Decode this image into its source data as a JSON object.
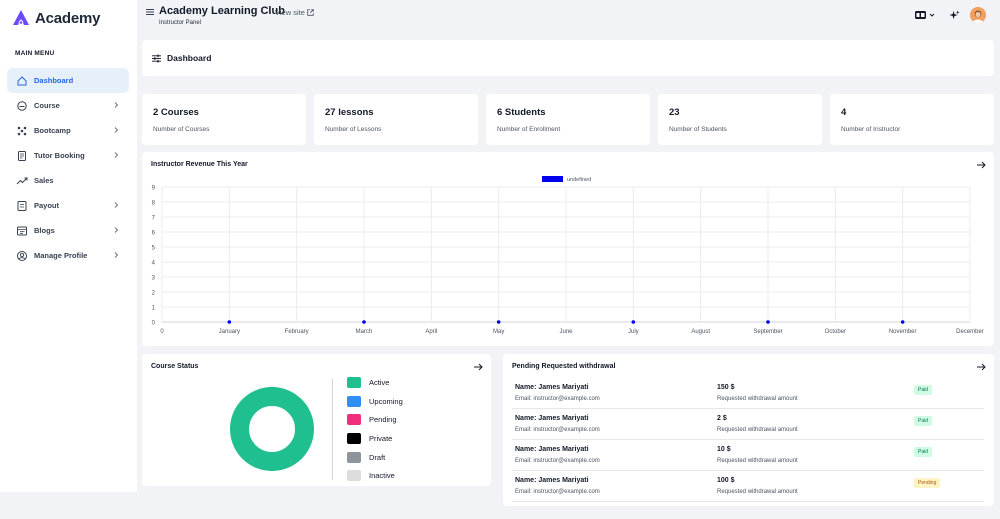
{
  "brand": {
    "name": "Academy"
  },
  "sidebar": {
    "menu_title": "MAIN MENU",
    "items": [
      {
        "label": "Dashboard",
        "icon": "home-icon",
        "active": true,
        "has_chevron": false
      },
      {
        "label": "Course",
        "icon": "course-icon",
        "active": false,
        "has_chevron": true
      },
      {
        "label": "Bootcamp",
        "icon": "bootcamp-icon",
        "active": false,
        "has_chevron": true
      },
      {
        "label": "Tutor Booking",
        "icon": "booking-icon",
        "active": false,
        "has_chevron": true
      },
      {
        "label": "Sales",
        "icon": "sales-icon",
        "active": false,
        "has_chevron": false
      },
      {
        "label": "Payout",
        "icon": "payout-icon",
        "active": false,
        "has_chevron": true
      },
      {
        "label": "Blogs",
        "icon": "blogs-icon",
        "active": false,
        "has_chevron": true
      },
      {
        "label": "Manage Profile",
        "icon": "profile-icon",
        "active": false,
        "has_chevron": true
      }
    ]
  },
  "topbar": {
    "title": "Academy Learning Club",
    "view_site": "View site",
    "subtitle": "Instructor Panel"
  },
  "dashboard": {
    "title": "Dashboard"
  },
  "stats": [
    {
      "value": "2 Courses",
      "label": "Number of Courses"
    },
    {
      "value": "27 lessons",
      "label": "Number of Lessons"
    },
    {
      "value": "6 Students",
      "label": "Number of Enrollment"
    },
    {
      "value": "23",
      "label": "Number of Students"
    },
    {
      "value": "4",
      "label": "Number of Instructor"
    }
  ],
  "revenue": {
    "title": "Instructor Revenue This Year"
  },
  "chart_data": {
    "type": "line",
    "title": "Instructor Revenue This Year",
    "categories": [
      "January",
      "February",
      "March",
      "April",
      "May",
      "June",
      "July",
      "August",
      "September",
      "October",
      "November",
      "December"
    ],
    "series": [
      {
        "name": "undefined",
        "color": "#0000ee",
        "values": [
          0,
          null,
          0,
          null,
          0,
          null,
          0,
          null,
          0,
          null,
          0,
          null
        ]
      }
    ],
    "yticks": [
      "0",
      "1",
      "2",
      "3",
      "4",
      "5",
      "6",
      "7",
      "8",
      "9"
    ],
    "xticks": [
      "0",
      "January",
      "February",
      "March",
      "April",
      "May",
      "June",
      "July",
      "August",
      "September",
      "October",
      "November",
      "December"
    ],
    "ylim": [
      0,
      9
    ],
    "grid": true,
    "legend": "top-center"
  },
  "course_status": {
    "title": "Course Status",
    "legend": [
      {
        "label": "Active",
        "color": "#1fbf8f"
      },
      {
        "label": "Upcoming",
        "color": "#2f8ff3"
      },
      {
        "label": "Pending",
        "color": "#ef2f7e"
      },
      {
        "label": "Private",
        "color": "#000000"
      },
      {
        "label": "Draft",
        "color": "#8d949c"
      },
      {
        "label": "Inactive",
        "color": "#dddddd"
      }
    ],
    "donut_color": "#1fbf8f"
  },
  "withdrawals": {
    "title": "Pending Requested withdrawal",
    "rows": [
      {
        "name": "Name: James Mariyati",
        "email": "Email: instructor@example.com",
        "amount": "150 $",
        "note": "Requested withdrawal amount",
        "status": "Paid",
        "status_type": "paid"
      },
      {
        "name": "Name: James Mariyati",
        "email": "Email: instructor@example.com",
        "amount": "2 $",
        "note": "Requested withdrawal amount",
        "status": "Paid",
        "status_type": "paid"
      },
      {
        "name": "Name: James Mariyati",
        "email": "Email: instructor@example.com",
        "amount": "10 $",
        "note": "Requested withdrawal amount",
        "status": "Paid",
        "status_type": "paid"
      },
      {
        "name": "Name: James Mariyati",
        "email": "Email: instructor@example.com",
        "amount": "100 $",
        "note": "Requested withdrawal amount",
        "status": "Pending",
        "status_type": "pending"
      }
    ]
  }
}
